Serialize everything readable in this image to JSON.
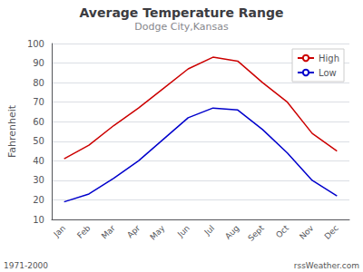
{
  "chart_data": {
    "type": "line",
    "title": "Average Temperature Range",
    "subtitle": "Dodge City,Kansas",
    "categories": [
      "Jan",
      "Feb",
      "Mar",
      "Apr",
      "May",
      "Jun",
      "Jul",
      "Aug",
      "Sept",
      "Oct",
      "Nov",
      "Dec"
    ],
    "series": [
      {
        "name": "High",
        "color": "#cc0000",
        "values": [
          41,
          48,
          58,
          67,
          77,
          87,
          93,
          91,
          80,
          70,
          54,
          45
        ]
      },
      {
        "name": "Low",
        "color": "#0000cc",
        "values": [
          19,
          23,
          31,
          40,
          51,
          62,
          67,
          66,
          56,
          44,
          30,
          22
        ]
      }
    ],
    "ylabel": "Fahrenheit",
    "ylim": [
      10,
      100
    ],
    "yticks": [
      10,
      20,
      30,
      40,
      50,
      60,
      70,
      80,
      90,
      100
    ],
    "grid": true,
    "legend": "upper right",
    "annotations": [
      "1971-2000",
      "rssWeather.com"
    ]
  }
}
